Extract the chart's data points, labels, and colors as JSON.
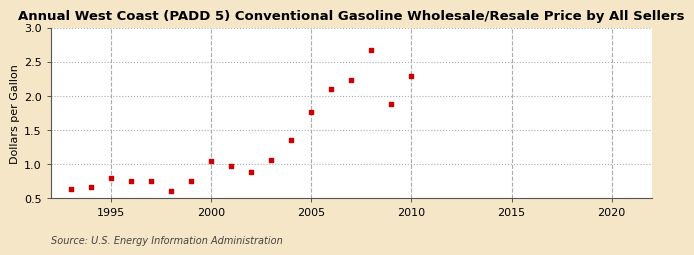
{
  "title": "Annual West Coast (PADD 5) Conventional Gasoline Wholesale/Resale Price by All Sellers",
  "ylabel": "Dollars per Gallon",
  "source": "Source: U.S. Energy Information Administration",
  "figure_bg": "#f5e6c8",
  "plot_bg": "#ffffff",
  "dot_color": "#cc0000",
  "years": [
    1993,
    1994,
    1995,
    1996,
    1997,
    1998,
    1999,
    2000,
    2001,
    2002,
    2003,
    2004,
    2005,
    2006,
    2007,
    2008,
    2009,
    2010
  ],
  "values": [
    0.64,
    0.66,
    0.79,
    0.76,
    0.75,
    0.61,
    0.76,
    1.04,
    0.97,
    0.88,
    1.06,
    1.36,
    1.77,
    2.1,
    2.23,
    2.67,
    1.88,
    2.29
  ],
  "xlim": [
    1992,
    2022
  ],
  "ylim": [
    0.5,
    3.0
  ],
  "xticks": [
    1995,
    2000,
    2005,
    2010,
    2015,
    2020
  ],
  "yticks": [
    0.5,
    1.0,
    1.5,
    2.0,
    2.5,
    3.0
  ],
  "h_grid_color": "#aaaaaa",
  "v_grid_color": "#aaaaaa",
  "title_fontsize": 9.5,
  "label_fontsize": 8,
  "source_fontsize": 7
}
